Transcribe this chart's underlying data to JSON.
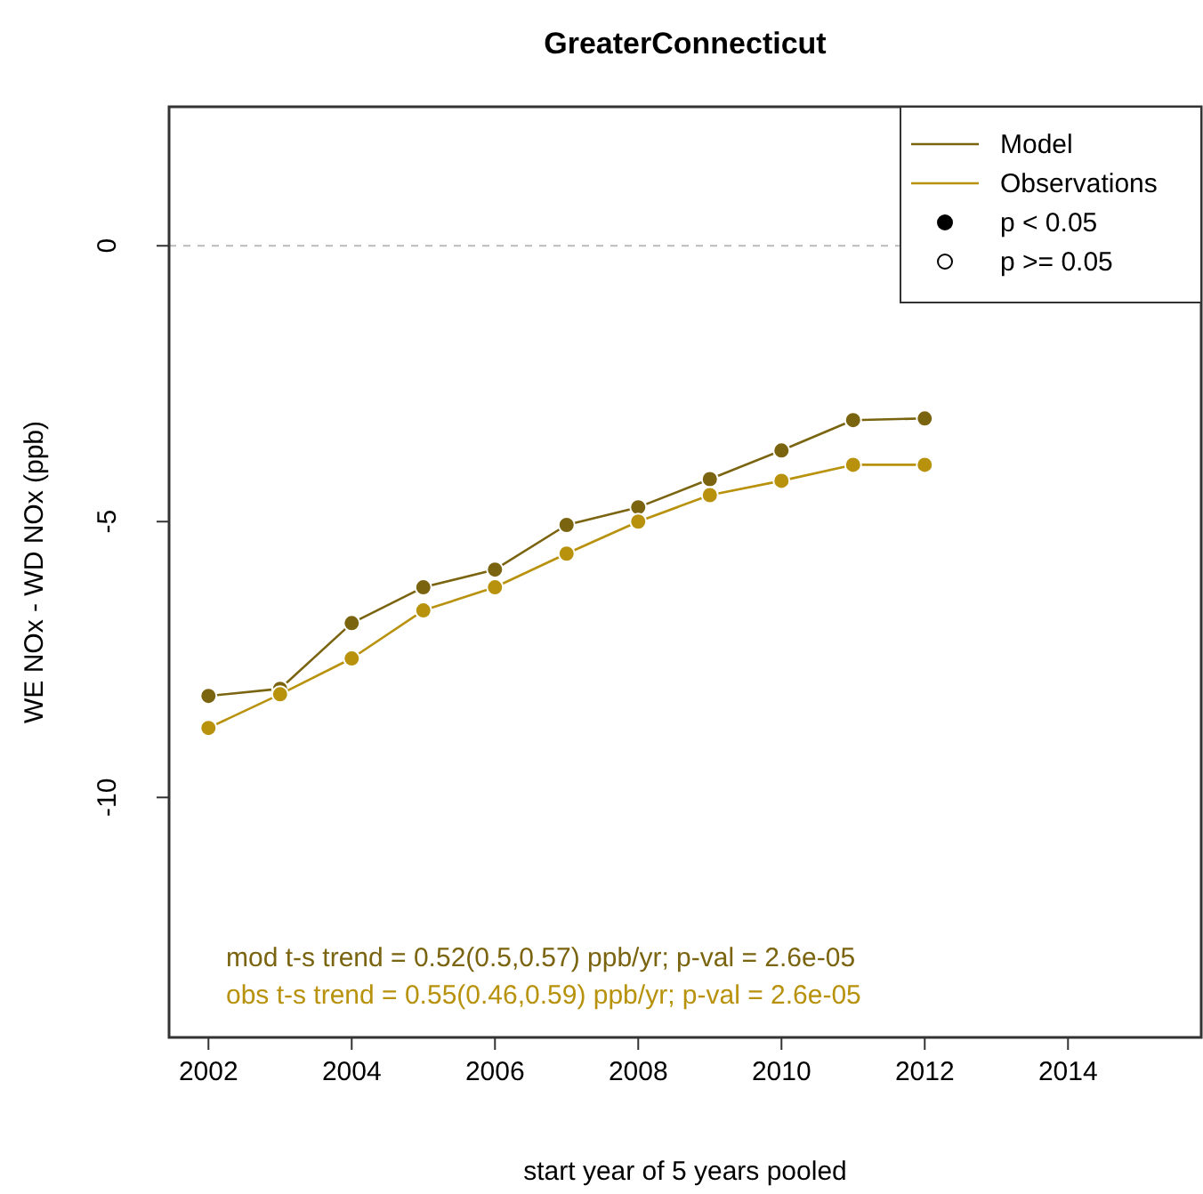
{
  "chart_data": {
    "type": "line",
    "title": "GreaterConnecticut",
    "xlabel": "start year of 5 years pooled",
    "ylabel": "WE NOx - WD NOx (ppb)",
    "x": [
      2002,
      2003,
      2004,
      2005,
      2006,
      2007,
      2008,
      2009,
      2010,
      2011,
      2012
    ],
    "series": [
      {
        "name": "Model",
        "color": "#7a6410",
        "values": [
          -8.16,
          -8.03,
          -6.84,
          -6.19,
          -5.87,
          -5.06,
          -4.74,
          -4.23,
          -3.71,
          -3.16,
          -3.13
        ]
      },
      {
        "name": "Observations",
        "color": "#b8920c",
        "values": [
          -8.74,
          -8.13,
          -7.48,
          -6.61,
          -6.19,
          -5.58,
          -5.0,
          -4.52,
          -4.26,
          -3.97,
          -3.97
        ]
      }
    ],
    "xlim": [
      2001.45,
      2015.86
    ],
    "ylim": [
      -14.35,
      2.52
    ],
    "xticks": [
      2002,
      2004,
      2006,
      2008,
      2010,
      2012,
      2014
    ],
    "yticks": [
      -10,
      -5,
      0
    ],
    "ref_lines": [
      {
        "axis": "y",
        "value": 0,
        "color": "#bbbbbb",
        "line_style": "dashed"
      }
    ],
    "marker": "circle",
    "legend": "top right",
    "grid": false,
    "annotations": [
      "p < 0.05",
      "p >= 0.05",
      "mod t-s trend = 0.52(0.5,0.57) ppb/yr; p-val = 2.6e-05",
      "obs t-s trend = 0.55(0.46,0.59) ppb/yr; p-val = 2.6e-05"
    ]
  }
}
